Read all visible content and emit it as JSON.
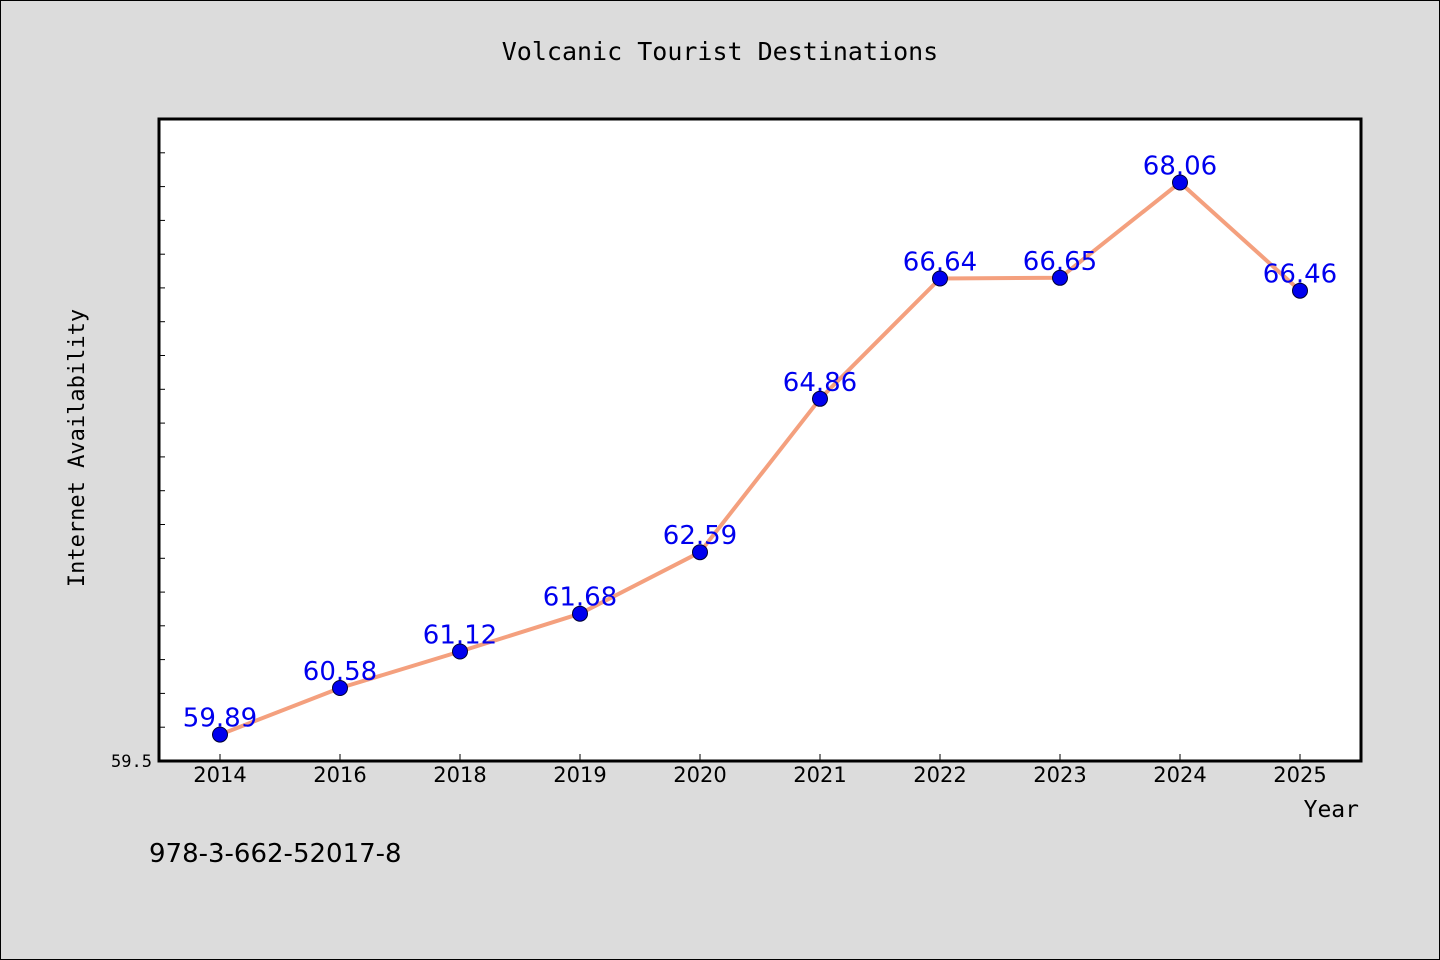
{
  "chart_data": {
    "type": "line",
    "title": "Volcanic Tourist Destinations",
    "xlabel": "Year",
    "ylabel": "Internet Availability",
    "categories": [
      "2014",
      "2016",
      "2018",
      "2019",
      "2020",
      "2021",
      "2022",
      "2023",
      "2024",
      "2025"
    ],
    "series": [
      {
        "values": [
          59.89,
          60.58,
          61.12,
          61.68,
          62.59,
          64.86,
          66.64,
          66.65,
          68.06,
          66.46
        ],
        "data_labels": [
          "59.89",
          "60.58",
          "61.12",
          "61.68",
          "62.59",
          "64.86",
          "66.64",
          "66.65",
          "68.06",
          "66.46"
        ],
        "line_color": "#f4a07e",
        "marker_color": "#0000ee",
        "label_color": "#0000ee"
      }
    ],
    "ylim": [
      59.5,
      69.0
    ],
    "y_tick_label": "59.5",
    "grid": false,
    "legend": "none"
  },
  "annotation": {
    "text": "978-3-662-52017-8"
  },
  "colors": {
    "background": "#dcdcdc",
    "plot_background": "#ffffff",
    "axis": "#000000"
  }
}
